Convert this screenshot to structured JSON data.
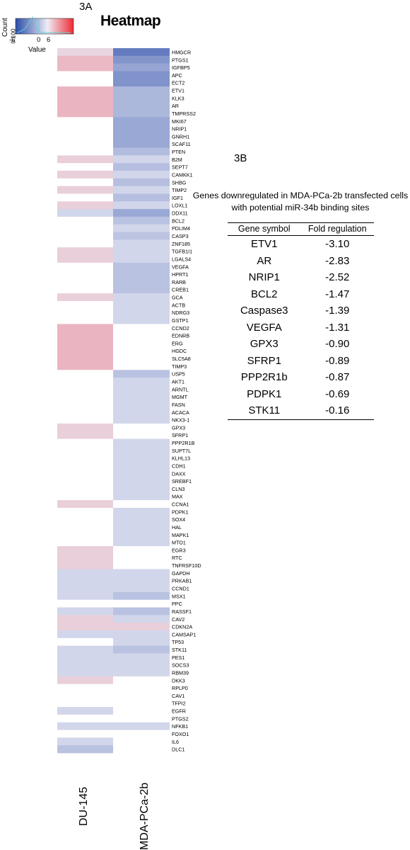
{
  "figure": {
    "panel_a_label": "3A",
    "panel_b_label": "3B"
  },
  "heatmap_key": {
    "title": "Heatmap",
    "count_axis_label": "Count",
    "count_ticks": "0  100",
    "value_axis_label": "Value",
    "value_ticks": [
      "-6",
      "0",
      "6"
    ],
    "color_low": "#2b4ea8",
    "color_mid": "#e8e8f4",
    "color_high": "#ee2a33"
  },
  "chart_data": [
    {
      "type": "heatmap",
      "columns": [
        "DU-145",
        "MDA-PCa-2b"
      ],
      "value_range": [
        -6,
        6
      ],
      "rows": [
        {
          "gene": "HMGCR",
          "values": [
            0.6,
            -4.2
          ]
        },
        {
          "gene": "PTGS1",
          "values": [
            1.5,
            -3.2
          ]
        },
        {
          "gene": "IGFBP5",
          "values": [
            1.5,
            -2.6
          ]
        },
        {
          "gene": "APC",
          "values": [
            0,
            -3.3
          ]
        },
        {
          "gene": "ECT2",
          "values": [
            0,
            -3.3
          ]
        },
        {
          "gene": "ETV1",
          "values": [
            1.6,
            -1.9
          ]
        },
        {
          "gene": "KLK3",
          "values": [
            1.6,
            -1.9
          ]
        },
        {
          "gene": "AR",
          "values": [
            1.6,
            -1.9
          ]
        },
        {
          "gene": "TMPRSS2",
          "values": [
            1.6,
            -1.9
          ]
        },
        {
          "gene": "MKI67",
          "values": [
            0,
            -2.5
          ]
        },
        {
          "gene": "NRIP1",
          "values": [
            0,
            -2.5
          ]
        },
        {
          "gene": "GNRH1",
          "values": [
            0,
            -2.5
          ]
        },
        {
          "gene": "SCAF11",
          "values": [
            0,
            -2.5
          ]
        },
        {
          "gene": "PTEN",
          "values": [
            0,
            -1.7
          ]
        },
        {
          "gene": "B2M",
          "values": [
            0.8,
            -0.7
          ]
        },
        {
          "gene": "SEPT7",
          "values": [
            0,
            -1.6
          ]
        },
        {
          "gene": "CAMKK1",
          "values": [
            0.8,
            -0.7
          ]
        },
        {
          "gene": "SHBG",
          "values": [
            0,
            -1.6
          ]
        },
        {
          "gene": "TIMP2",
          "values": [
            0.8,
            -0.7
          ]
        },
        {
          "gene": "IGF1",
          "values": [
            0,
            -1.6
          ]
        },
        {
          "gene": "LOXL1",
          "values": [
            0.8,
            -0.7
          ]
        },
        {
          "gene": "DDX11",
          "values": [
            -0.7,
            -2.5
          ]
        },
        {
          "gene": "BCL2",
          "values": [
            0,
            -1.5
          ]
        },
        {
          "gene": "PDLIM4",
          "values": [
            0,
            -0.7
          ]
        },
        {
          "gene": "CASP3",
          "values": [
            0,
            -1.4
          ]
        },
        {
          "gene": "ZNF185",
          "values": [
            0,
            -0.7
          ]
        },
        {
          "gene": "TGFB1I1",
          "values": [
            0.8,
            -0.7
          ]
        },
        {
          "gene": "LGALS4",
          "values": [
            0.8,
            -0.7
          ]
        },
        {
          "gene": "VEGFA",
          "values": [
            0,
            -1.5
          ]
        },
        {
          "gene": "HPRT1",
          "values": [
            0,
            -1.5
          ]
        },
        {
          "gene": "RARB",
          "values": [
            0,
            -1.5
          ]
        },
        {
          "gene": "CREB1",
          "values": [
            0,
            -1.5
          ]
        },
        {
          "gene": "GCA",
          "values": [
            0.8,
            -0.7
          ]
        },
        {
          "gene": "ACTB",
          "values": [
            0,
            -0.7
          ]
        },
        {
          "gene": "NDRG3",
          "values": [
            0,
            -0.7
          ]
        },
        {
          "gene": "GSTP1",
          "values": [
            0,
            -0.7
          ]
        },
        {
          "gene": "CCND2",
          "values": [
            1.6,
            0
          ]
        },
        {
          "gene": "EDNRB",
          "values": [
            1.6,
            0
          ]
        },
        {
          "gene": "ERG",
          "values": [
            1.6,
            0
          ]
        },
        {
          "gene": "HGDC",
          "values": [
            1.6,
            0
          ]
        },
        {
          "gene": "SLC5A8",
          "values": [
            1.6,
            0
          ]
        },
        {
          "gene": "TIMP3",
          "values": [
            1.6,
            0
          ]
        },
        {
          "gene": "USP5",
          "values": [
            0,
            -1.5
          ]
        },
        {
          "gene": "AKT1",
          "values": [
            0,
            -0.7
          ]
        },
        {
          "gene": "ARNTL",
          "values": [
            0,
            -0.7
          ]
        },
        {
          "gene": "MGMT",
          "values": [
            0,
            -0.7
          ]
        },
        {
          "gene": "FASN",
          "values": [
            0,
            -0.7
          ]
        },
        {
          "gene": "ACACA",
          "values": [
            0,
            -0.7
          ]
        },
        {
          "gene": "NKX3-1",
          "values": [
            0,
            -0.7
          ]
        },
        {
          "gene": "GPX3",
          "values": [
            0.8,
            0
          ]
        },
        {
          "gene": "SFRP1",
          "values": [
            0.8,
            0
          ]
        },
        {
          "gene": "PPP2R1B",
          "values": [
            0,
            -0.7
          ]
        },
        {
          "gene": "SUPT7L",
          "values": [
            0,
            -0.7
          ]
        },
        {
          "gene": "KLHL13",
          "values": [
            0,
            -0.7
          ]
        },
        {
          "gene": "CDH1",
          "values": [
            0,
            -0.7
          ]
        },
        {
          "gene": "DAXX",
          "values": [
            0,
            -0.7
          ]
        },
        {
          "gene": "SREBF1",
          "values": [
            0,
            -0.7
          ]
        },
        {
          "gene": "CLN3",
          "values": [
            0,
            -0.7
          ]
        },
        {
          "gene": "MAX",
          "values": [
            0,
            -0.7
          ]
        },
        {
          "gene": "CCNA1",
          "values": [
            0.8,
            0
          ]
        },
        {
          "gene": "PDPK1",
          "values": [
            0,
            -0.7
          ]
        },
        {
          "gene": "SOX4",
          "values": [
            0,
            -0.7
          ]
        },
        {
          "gene": "HAL",
          "values": [
            0,
            -0.7
          ]
        },
        {
          "gene": "MAPK1",
          "values": [
            0,
            -0.7
          ]
        },
        {
          "gene": "MTO1",
          "values": [
            0,
            -0.7
          ]
        },
        {
          "gene": "EGR3",
          "values": [
            0.8,
            0
          ]
        },
        {
          "gene": "RTC",
          "values": [
            0.8,
            0
          ]
        },
        {
          "gene": "TNFRSF10D",
          "values": [
            0.8,
            0
          ]
        },
        {
          "gene": "GAPDH",
          "values": [
            -0.7,
            -0.7
          ]
        },
        {
          "gene": "PRKAB1",
          "values": [
            -0.7,
            -0.7
          ]
        },
        {
          "gene": "CCND1",
          "values": [
            -0.7,
            -0.7
          ]
        },
        {
          "gene": "MSX1",
          "values": [
            -0.7,
            -1.5
          ]
        },
        {
          "gene": "PPC",
          "values": [
            0,
            0
          ]
        },
        {
          "gene": "RASSF1",
          "values": [
            -0.7,
            -1.5
          ]
        },
        {
          "gene": "CAV2",
          "values": [
            0.8,
            -0.7
          ]
        },
        {
          "gene": "CDKN2A",
          "values": [
            0.8,
            0.8
          ]
        },
        {
          "gene": "CAMSAP1",
          "values": [
            -0.7,
            -0.7
          ]
        },
        {
          "gene": "TP53",
          "values": [
            0,
            -0.7
          ]
        },
        {
          "gene": "STK11",
          "values": [
            -0.7,
            -1.5
          ]
        },
        {
          "gene": "PES1",
          "values": [
            -0.7,
            -0.7
          ]
        },
        {
          "gene": "SOCS3",
          "values": [
            -0.7,
            -0.7
          ]
        },
        {
          "gene": "RBM39",
          "values": [
            -0.7,
            -0.7
          ]
        },
        {
          "gene": "DKK3",
          "values": [
            0.8,
            0
          ]
        },
        {
          "gene": "RPLP0",
          "values": [
            0,
            0
          ]
        },
        {
          "gene": "CAV1",
          "values": [
            0,
            0
          ]
        },
        {
          "gene": "TFPI2",
          "values": [
            0,
            0
          ]
        },
        {
          "gene": "EGFR",
          "values": [
            -0.7,
            0
          ]
        },
        {
          "gene": "PTGS2",
          "values": [
            0,
            0
          ]
        },
        {
          "gene": "NFKB1",
          "values": [
            -0.7,
            -0.7
          ]
        },
        {
          "gene": "FOXO1",
          "values": [
            0,
            0
          ]
        },
        {
          "gene": "IL6",
          "values": [
            -0.7,
            0
          ]
        },
        {
          "gene": "DLC1",
          "values": [
            -1.5,
            0
          ]
        }
      ]
    },
    {
      "type": "table",
      "caption": "Genes downregulated in MDA-PCa-2b transfected cells with potential miR-34b binding sites",
      "headers": [
        "Gene symbol",
        "Fold regulation"
      ],
      "rows": [
        [
          "ETV1",
          "-3.10"
        ],
        [
          "AR",
          "-2.83"
        ],
        [
          "NRIP1",
          "-2.52"
        ],
        [
          "BCL2",
          "-1.47"
        ],
        [
          "Caspase3",
          "-1.39"
        ],
        [
          "VEGFA",
          "-1.31"
        ],
        [
          "GPX3",
          "-0.90"
        ],
        [
          "SFRP1",
          "-0.89"
        ],
        [
          "PPP2R1b",
          "-0.87"
        ],
        [
          "PDPK1",
          "-0.69"
        ],
        [
          "STK11",
          "-0.16"
        ]
      ]
    }
  ]
}
